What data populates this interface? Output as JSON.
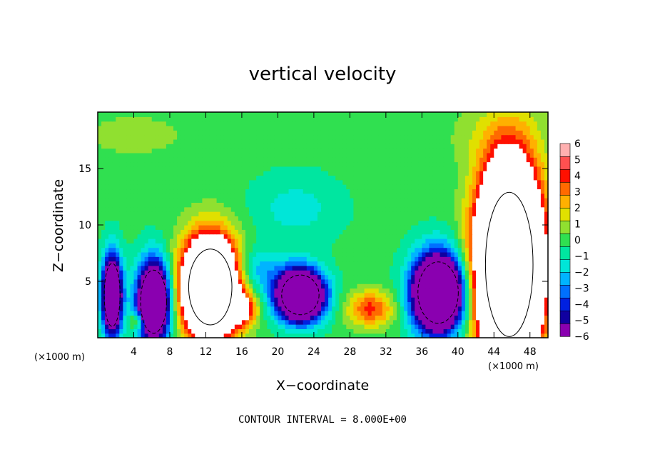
{
  "chart_data": {
    "type": "heatmap",
    "title": "vertical velocity",
    "xlabel": "X−coordinate",
    "ylabel": "Z−coordinate",
    "x_scale_note": "(×1000 m)",
    "xlim": [
      0,
      50
    ],
    "ylim": [
      0,
      20
    ],
    "x_ticks": [
      4,
      8,
      12,
      16,
      20,
      24,
      28,
      32,
      36,
      40,
      44,
      48
    ],
    "y_ticks": [
      5,
      10,
      15
    ],
    "colorbar": {
      "levels": [
        -6,
        -5,
        -4,
        -3,
        -2,
        -1,
        0,
        1,
        2,
        3,
        4,
        5,
        6
      ],
      "labels": [
        "−6",
        "−5",
        "−4",
        "−3",
        "−2",
        "−1",
        "0",
        "1",
        "2",
        "3",
        "4",
        "5",
        "6"
      ],
      "colors": [
        "#8a00b0",
        "#1000a0",
        "#0020e0",
        "#0070ff",
        "#00b4ff",
        "#00e6d8",
        "#00e6a0",
        "#30e050",
        "#90e030",
        "#e0e000",
        "#ffb000",
        "#ff6a00",
        "#ff1000",
        "#ff5050",
        "#ffb0b0"
      ]
    },
    "footnote": "CONTOUR INTERVAL = 8.000E+00",
    "features": [
      {
        "x": 12.5,
        "z": 4.5,
        "rx": 3.0,
        "rz": 4.2,
        "w": 22
      },
      {
        "x": 45.7,
        "z": 6.5,
        "rx": 3.3,
        "rz": 8.0,
        "w": 30
      },
      {
        "x": 6.2,
        "z": 3.2,
        "rx": 1.8,
        "rz": 3.5,
        "w": -16
      },
      {
        "x": 1.6,
        "z": 3.8,
        "rx": 1.1,
        "rz": 3.5,
        "w": -14
      },
      {
        "x": 22.5,
        "z": 3.8,
        "rx": 2.6,
        "rz": 2.2,
        "w": -18
      },
      {
        "x": 37.8,
        "z": 4.0,
        "rx": 2.8,
        "rz": 3.4,
        "w": -18
      },
      {
        "x": 30.3,
        "z": 2.6,
        "rx": 2.6,
        "rz": 1.6,
        "w": 5
      },
      {
        "x": 16.3,
        "z": 2.5,
        "rx": 1.4,
        "rz": 1.4,
        "w": 5
      },
      {
        "x": 4.4,
        "z": 1.5,
        "rx": 0.9,
        "rz": 0.8,
        "w": 4
      },
      {
        "x": 22.0,
        "z": 11.5,
        "rx": 5.0,
        "rz": 3.0,
        "w": -1.8
      },
      {
        "x": 17.5,
        "z": 6.0,
        "rx": 3.0,
        "rz": 2.0,
        "w": -3
      },
      {
        "x": 4.0,
        "z": 18.0,
        "rx": 6.0,
        "rz": 2.0,
        "w": 1.2
      },
      {
        "x": 44.0,
        "z": 18.0,
        "rx": 6.0,
        "rz": 3.0,
        "w": 1.0
      }
    ],
    "grid": false
  }
}
